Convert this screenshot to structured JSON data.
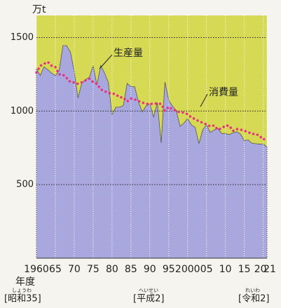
{
  "chart_data": {
    "type": "area",
    "y_unit": "万t",
    "x": [
      1960,
      1961,
      1962,
      1963,
      1964,
      1965,
      1966,
      1967,
      1968,
      1969,
      1970,
      1971,
      1972,
      1973,
      1974,
      1975,
      1976,
      1977,
      1978,
      1979,
      1980,
      1981,
      1982,
      1983,
      1984,
      1985,
      1986,
      1987,
      1988,
      1989,
      1990,
      1991,
      1992,
      1993,
      1994,
      1995,
      1996,
      1997,
      1998,
      1999,
      2000,
      2001,
      2002,
      2003,
      2004,
      2005,
      2006,
      2007,
      2008,
      2009,
      2010,
      2011,
      2012,
      2013,
      2014,
      2015,
      2016,
      2017,
      2018,
      2019,
      2020,
      2021
    ],
    "series": [
      {
        "name": "生産量",
        "color": "#a9a8de",
        "above_color": "#d6d954",
        "values": [
          1286,
          1242,
          1301,
          1281,
          1258,
          1241,
          1275,
          1445,
          1445,
          1400,
          1269,
          1089,
          1190,
          1215,
          1229,
          1309,
          1177,
          1310,
          1259,
          1196,
          975,
          1026,
          1027,
          1037,
          1188,
          1166,
          1165,
          1063,
          994,
          1035,
          1050,
          960,
          1057,
          783,
          1198,
          1072,
          1034,
          1003,
          896,
          918,
          949,
          906,
          889,
          779,
          873,
          906,
          855,
          871,
          882,
          847,
          848,
          840,
          852,
          860,
          843,
          799,
          804,
          782,
          778,
          776,
          776,
          756
        ]
      },
      {
        "name": "消費量",
        "color": "#e8327e",
        "values": [
          1262,
          1307,
          1321,
          1334,
          1308,
          1299,
          1250,
          1248,
          1225,
          1197,
          1195,
          1185,
          1195,
          1208,
          1220,
          1196,
          1185,
          1148,
          1136,
          1122,
          1121,
          1113,
          1093,
          1093,
          1065,
          1085,
          1079,
          1068,
          1058,
          1049,
          1048,
          1050,
          1052,
          1048,
          1002,
          1029,
          1011,
          1002,
          990,
          990,
          979,
          956,
          946,
          930,
          921,
          909,
          896,
          902,
          874,
          882,
          902,
          901,
          865,
          878,
          874,
          866,
          858,
          844,
          845,
          832,
          806,
          822
        ]
      }
    ],
    "xlim": [
      1960,
      2021
    ],
    "xticks": [
      1960,
      {
        "value": 1965,
        "label": "65"
      },
      {
        "value": 1970,
        "label": "70"
      },
      {
        "value": 1975,
        "label": "75"
      },
      {
        "value": 1980,
        "label": "80"
      },
      {
        "value": 1985,
        "label": "85"
      },
      {
        "value": 1990,
        "label": "90"
      },
      {
        "value": 1995,
        "label": "95"
      },
      2000,
      {
        "value": 2005,
        "label": "05"
      },
      {
        "value": 2010,
        "label": "10"
      },
      {
        "value": 2015,
        "label": "15"
      },
      {
        "value": 2020,
        "label": "20"
      },
      {
        "value": 2021,
        "label": "21"
      }
    ],
    "x_axis_label": "年度",
    "era_labels": [
      {
        "text": "[昭和35]",
        "ruby": "しょうわ"
      },
      {
        "text": "[平成2]",
        "ruby": "へいせい"
      },
      {
        "text": "[令和2]",
        "ruby": "れいわ"
      }
    ],
    "ylim": [
      0,
      1650
    ],
    "yticks": [
      500,
      1000,
      1500
    ],
    "grid": true
  }
}
